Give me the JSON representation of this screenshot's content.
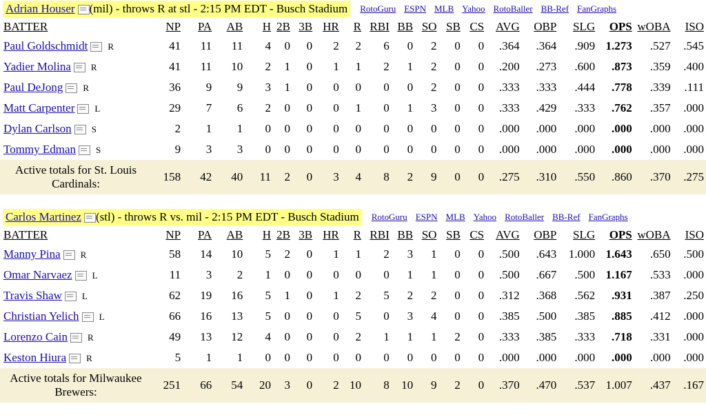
{
  "columns": [
    "BATTER",
    "NP",
    "PA",
    "AB",
    "H",
    "2B",
    "3B",
    "HR",
    "R",
    "RBI",
    "BB",
    "SO",
    "SB",
    "CS",
    "AVG",
    "OBP",
    "SLG",
    "OPS",
    "wOBA",
    "ISO"
  ],
  "links": [
    "RotoGuru",
    "ESPN",
    "MLB",
    "Yahoo",
    "RotoBaller",
    "BB-Ref",
    "FanGraphs"
  ],
  "matchups": [
    {
      "pitcher_name": "Adrian Houser",
      "pitcher_info": "(mil) - throws R at stl - 2:15 PM EDT - Busch Stadium",
      "rows": [
        {
          "name": "Paul Goldschmidt",
          "hand": "R",
          "stats": [
            "41",
            "11",
            "11",
            "4",
            "0",
            "0",
            "2",
            "2",
            "6",
            "0",
            "2",
            "0",
            "0",
            ".364",
            ".364",
            ".909",
            "1.273",
            ".527",
            ".545"
          ]
        },
        {
          "name": "Yadier Molina",
          "hand": "R",
          "stats": [
            "41",
            "11",
            "10",
            "2",
            "1",
            "0",
            "1",
            "1",
            "2",
            "1",
            "2",
            "0",
            "0",
            ".200",
            ".273",
            ".600",
            ".873",
            ".359",
            ".400"
          ]
        },
        {
          "name": "Paul DeJong",
          "hand": "R",
          "stats": [
            "36",
            "9",
            "9",
            "3",
            "1",
            "0",
            "0",
            "0",
            "0",
            "0",
            "2",
            "0",
            "0",
            ".333",
            ".333",
            ".444",
            ".778",
            ".339",
            ".111"
          ]
        },
        {
          "name": "Matt Carpenter",
          "hand": "L",
          "stats": [
            "29",
            "7",
            "6",
            "2",
            "0",
            "0",
            "0",
            "1",
            "0",
            "1",
            "3",
            "0",
            "0",
            ".333",
            ".429",
            ".333",
            ".762",
            ".357",
            ".000"
          ]
        },
        {
          "name": "Dylan Carlson",
          "hand": "S",
          "stats": [
            "2",
            "1",
            "1",
            "0",
            "0",
            "0",
            "0",
            "0",
            "0",
            "0",
            "0",
            "0",
            "0",
            ".000",
            ".000",
            ".000",
            ".000",
            ".000",
            ".000"
          ]
        },
        {
          "name": "Tommy Edman",
          "hand": "S",
          "stats": [
            "9",
            "3",
            "3",
            "0",
            "0",
            "0",
            "0",
            "0",
            "0",
            "0",
            "0",
            "0",
            "0",
            ".000",
            ".000",
            ".000",
            ".000",
            ".000",
            ".000"
          ]
        }
      ],
      "totals_label": "Active totals for St. Louis Cardinals:",
      "totals": [
        "158",
        "42",
        "40",
        "11",
        "2",
        "0",
        "3",
        "4",
        "8",
        "2",
        "9",
        "0",
        "0",
        ".275",
        ".310",
        ".550",
        ".860",
        ".370",
        ".275"
      ]
    },
    {
      "pitcher_name": "Carlos Martinez",
      "pitcher_info": "(stl) - throws R vs. mil - 2:15 PM EDT - Busch Stadium",
      "rows": [
        {
          "name": "Manny Pina",
          "hand": "R",
          "stats": [
            "58",
            "14",
            "10",
            "5",
            "2",
            "0",
            "1",
            "1",
            "2",
            "3",
            "1",
            "0",
            "0",
            ".500",
            ".643",
            "1.000",
            "1.643",
            ".650",
            ".500"
          ]
        },
        {
          "name": "Omar Narvaez",
          "hand": "L",
          "stats": [
            "11",
            "3",
            "2",
            "1",
            "0",
            "0",
            "0",
            "0",
            "0",
            "1",
            "1",
            "0",
            "0",
            ".500",
            ".667",
            ".500",
            "1.167",
            ".533",
            ".000"
          ]
        },
        {
          "name": "Travis Shaw",
          "hand": "L",
          "stats": [
            "62",
            "19",
            "16",
            "5",
            "1",
            "0",
            "1",
            "2",
            "5",
            "2",
            "2",
            "0",
            "0",
            ".312",
            ".368",
            ".562",
            ".931",
            ".387",
            ".250"
          ]
        },
        {
          "name": "Christian Yelich",
          "hand": "L",
          "stats": [
            "66",
            "16",
            "13",
            "5",
            "0",
            "0",
            "0",
            "5",
            "0",
            "3",
            "4",
            "0",
            "0",
            ".385",
            ".500",
            ".385",
            ".885",
            ".412",
            ".000"
          ]
        },
        {
          "name": "Lorenzo Cain",
          "hand": "R",
          "stats": [
            "49",
            "13",
            "12",
            "4",
            "0",
            "0",
            "0",
            "2",
            "1",
            "1",
            "1",
            "2",
            "0",
            ".333",
            ".385",
            ".333",
            ".718",
            ".331",
            ".000"
          ]
        },
        {
          "name": "Keston Hiura",
          "hand": "R",
          "stats": [
            "5",
            "1",
            "1",
            "0",
            "0",
            "0",
            "0",
            "0",
            "0",
            "0",
            "0",
            "0",
            "0",
            ".000",
            ".000",
            ".000",
            ".000",
            ".000",
            ".000"
          ]
        }
      ],
      "totals_label": "Active totals for Milwaukee Brewers:",
      "totals": [
        "251",
        "66",
        "54",
        "20",
        "3",
        "0",
        "2",
        "10",
        "8",
        "10",
        "9",
        "2",
        "0",
        ".370",
        ".470",
        ".537",
        "1.007",
        ".437",
        ".167"
      ]
    }
  ]
}
